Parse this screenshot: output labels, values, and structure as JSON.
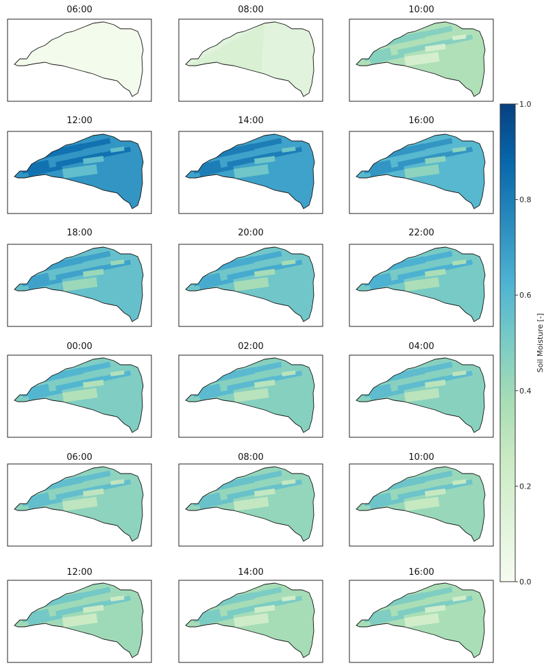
{
  "chart_data": {
    "type": "heatmap",
    "colormap": "GnBu",
    "colorbar": {
      "label": "Soil Moisture [-]",
      "range": [
        0.0,
        1.0
      ],
      "ticks": [
        "0.0",
        "0.2",
        "0.4",
        "0.6",
        "0.8",
        "1.0"
      ],
      "placement": "right"
    },
    "panels": [
      {
        "title": "06:00",
        "mean_value": 0.02
      },
      {
        "title": "08:00",
        "mean_value": 0.12
      },
      {
        "title": "10:00",
        "mean_value": 0.35
      },
      {
        "title": "12:00",
        "mean_value": 0.72
      },
      {
        "title": "14:00",
        "mean_value": 0.68
      },
      {
        "title": "16:00",
        "mean_value": 0.6
      },
      {
        "title": "18:00",
        "mean_value": 0.56
      },
      {
        "title": "20:00",
        "mean_value": 0.53
      },
      {
        "title": "22:00",
        "mean_value": 0.51
      },
      {
        "title": "00:00",
        "mean_value": 0.49
      },
      {
        "title": "02:00",
        "mean_value": 0.47
      },
      {
        "title": "04:00",
        "mean_value": 0.46
      },
      {
        "title": "06:00",
        "mean_value": 0.45
      },
      {
        "title": "08:00",
        "mean_value": 0.43
      },
      {
        "title": "10:00",
        "mean_value": 0.42
      },
      {
        "title": "12:00",
        "mean_value": 0.4
      },
      {
        "title": "14:00",
        "mean_value": 0.38
      },
      {
        "title": "16:00",
        "mean_value": 0.37
      }
    ]
  }
}
